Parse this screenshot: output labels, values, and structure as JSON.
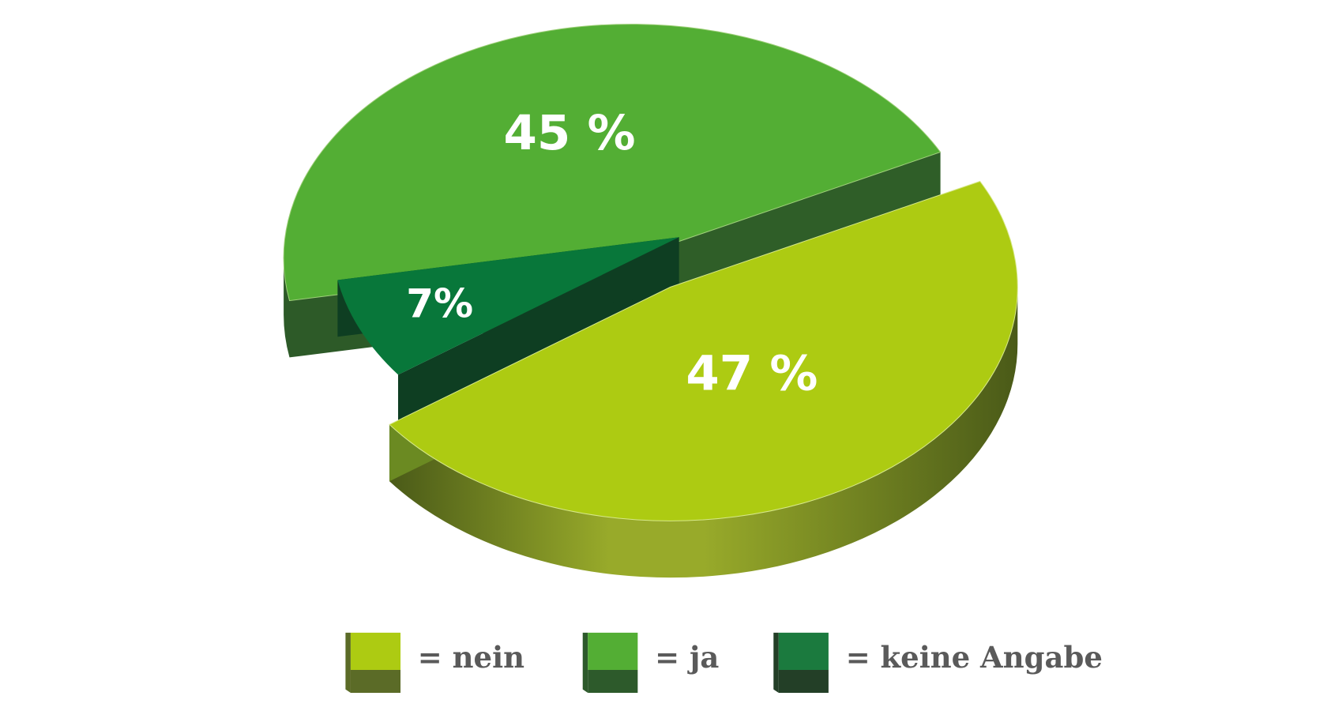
{
  "chart_data": {
    "type": "pie",
    "slices": [
      {
        "label": "nein",
        "value": 47,
        "display": "47 %",
        "color": "#adcb12",
        "side_color": "#6b8a22",
        "side_highlight": "#98aa2a",
        "edge_color": "#4a5a18"
      },
      {
        "label": "ja",
        "value": 45,
        "display": "45 %",
        "color": "#53ae34",
        "side_color": "#2d5a28",
        "side_highlight": "#2d5a28",
        "edge_color": "#1f3f1c"
      },
      {
        "label": "keine Angabe",
        "value": 7,
        "display": "7%",
        "color": "#08773a",
        "side_color": "#0e3e22",
        "side_highlight": "#0e3e22",
        "edge_color": "#0a2d18"
      }
    ]
  },
  "legend": {
    "items": [
      {
        "text": "= nein",
        "color": "#adcb12",
        "side": "#5b6b27"
      },
      {
        "text": "= ja",
        "color": "#53ae34",
        "side": "#2d5a2b"
      },
      {
        "text": "= keine Angabe",
        "color": "#1b7a3e",
        "side": "#233f27"
      }
    ]
  }
}
